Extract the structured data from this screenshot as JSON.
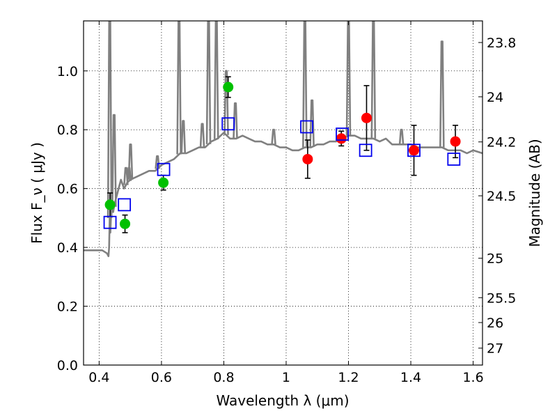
{
  "chart_data": {
    "type": "scatter",
    "xlabel": "Wavelength  λ (μm)",
    "ylabel": "Flux  F_ν  ( μJy )",
    "y2label": "Magnitude (AB)",
    "xlim": [
      0.35,
      1.63
    ],
    "ylim": [
      0.0,
      1.17
    ],
    "x_ticks": [
      0.4,
      0.6,
      0.8,
      1.0,
      1.2,
      1.4,
      1.6
    ],
    "x_tick_labels": [
      "0.4",
      "0.6",
      "0.8",
      "1",
      "1.2",
      "1.4",
      "1.6"
    ],
    "y_ticks": [
      0.0,
      0.2,
      0.4,
      0.6,
      0.8,
      1.0
    ],
    "y_tick_labels": [
      "0.0",
      "0.2",
      "0.4",
      "0.6",
      "0.8",
      "1.0"
    ],
    "y2_ticks": [
      {
        "label": "23.8",
        "flux": 1.0965
      },
      {
        "label": "24",
        "flux": 0.912
      },
      {
        "label": "24.2",
        "flux": 0.7586
      },
      {
        "label": "24.5",
        "flux": 0.5754
      },
      {
        "label": "25",
        "flux": 0.3631
      },
      {
        "label": "25.5",
        "flux": 0.2291
      },
      {
        "label": "26",
        "flux": 0.1445
      },
      {
        "label": "27",
        "flux": 0.0575
      }
    ],
    "grid": true,
    "colors": {
      "spectrum": "#808080",
      "green_points": "#00c000",
      "red_points": "#ff0000",
      "model_squares": "#0000ee",
      "errorbar": "#000000"
    },
    "series": [
      {
        "kind": "line",
        "x": [
          0.35,
          0.37,
          0.39,
          0.41,
          0.425,
          0.43,
          0.432,
          0.434,
          0.436,
          0.44,
          0.445,
          0.45,
          0.46,
          0.47,
          0.48,
          0.49,
          0.5,
          0.52,
          0.54,
          0.56,
          0.58,
          0.6,
          0.62,
          0.64,
          0.66,
          0.68,
          0.7,
          0.72,
          0.74,
          0.76,
          0.78,
          0.8,
          0.82,
          0.84,
          0.86,
          0.88,
          0.9,
          0.92,
          0.94,
          0.96,
          0.98,
          1.0,
          1.02,
          1.04,
          1.06,
          1.08,
          1.1,
          1.12,
          1.14,
          1.16,
          1.18,
          1.2,
          1.22,
          1.24,
          1.26,
          1.28,
          1.3,
          1.32,
          1.34,
          1.36,
          1.38,
          1.4,
          1.42,
          1.44,
          1.46,
          1.48,
          1.5,
          1.52,
          1.54,
          1.56,
          1.58,
          1.6,
          1.63
        ],
        "y": [
          0.39,
          0.39,
          0.39,
          0.39,
          0.38,
          0.37,
          0.4,
          0.5,
          0.45,
          0.56,
          0.52,
          0.55,
          0.59,
          0.63,
          0.6,
          0.62,
          0.63,
          0.64,
          0.65,
          0.66,
          0.66,
          0.68,
          0.69,
          0.7,
          0.72,
          0.72,
          0.73,
          0.74,
          0.74,
          0.76,
          0.77,
          0.79,
          0.77,
          0.77,
          0.78,
          0.77,
          0.76,
          0.76,
          0.75,
          0.75,
          0.74,
          0.74,
          0.73,
          0.73,
          0.74,
          0.74,
          0.75,
          0.75,
          0.76,
          0.76,
          0.77,
          0.78,
          0.78,
          0.77,
          0.77,
          0.77,
          0.76,
          0.77,
          0.75,
          0.75,
          0.75,
          0.75,
          0.74,
          0.74,
          0.74,
          0.74,
          0.74,
          0.73,
          0.73,
          0.73,
          0.72,
          0.73,
          0.72
        ]
      },
      {
        "kind": "emission_lines",
        "x": [
          0.434,
          0.448,
          0.486,
          0.496,
          0.5007,
          0.587,
          0.6563,
          0.67,
          0.731,
          0.751,
          0.776,
          0.808,
          0.837,
          0.96,
          1.06,
          1.083,
          1.2,
          1.28,
          1.37,
          1.5
        ],
        "y": [
          1.17,
          0.85,
          0.67,
          0.67,
          0.75,
          0.71,
          1.17,
          0.83,
          0.82,
          1.17,
          1.17,
          1.0,
          0.89,
          0.8,
          1.17,
          0.9,
          1.17,
          1.17,
          0.8,
          1.1
        ]
      },
      {
        "kind": "points",
        "marker": "circle",
        "color": "#00c000",
        "x": [
          0.435,
          0.483,
          0.606,
          0.814
        ],
        "y": [
          0.545,
          0.48,
          0.62,
          0.945
        ],
        "yerr": [
          0.04,
          0.03,
          0.025,
          0.035
        ]
      },
      {
        "kind": "points",
        "marker": "circle",
        "color": "#ff0000",
        "x": [
          1.069,
          1.177,
          1.258,
          1.41,
          1.543
        ],
        "y": [
          0.7,
          0.77,
          0.84,
          0.73,
          0.76
        ],
        "yerr": [
          0.065,
          0.025,
          0.11,
          0.085,
          0.055
        ]
      },
      {
        "kind": "points",
        "marker": "open-square",
        "color": "#0000ee",
        "x": [
          0.435,
          0.481,
          0.607,
          0.814,
          1.066,
          1.18,
          1.255,
          1.41,
          1.538
        ],
        "y": [
          0.485,
          0.545,
          0.665,
          0.82,
          0.81,
          0.785,
          0.73,
          0.73,
          0.7
        ]
      }
    ]
  }
}
